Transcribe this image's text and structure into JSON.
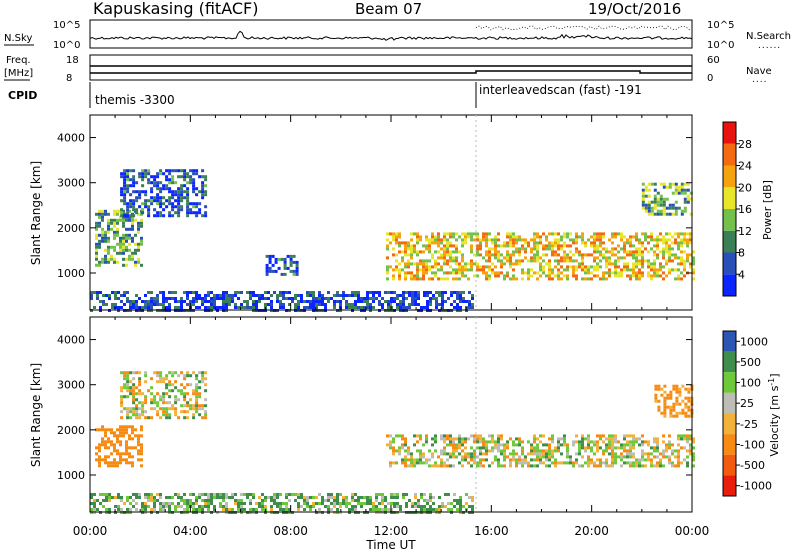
{
  "header": {
    "station": "Kapuskasing (fitACF)",
    "beam": "Beam 07",
    "date": "19/Oct/2016"
  },
  "summary_panels": {
    "nsky": {
      "label": "N.Sky",
      "ticks_left": [
        "10^5",
        "10^0"
      ],
      "ticks_right": [
        "10^5",
        "10^0"
      ],
      "right_label": "N.Search",
      "right_legend": "......"
    },
    "freq": {
      "label_line1": "Freq.",
      "label_line2": "[MHz]",
      "ticks_left": [
        "18",
        "8"
      ],
      "ticks_right": [
        "60",
        "0"
      ],
      "right_label": "Nave",
      "right_legend": "...."
    },
    "cpid": {
      "label": "CPID",
      "segments": [
        {
          "label": "themis -3300",
          "start_hour": 0
        },
        {
          "label": "interleavedscan (fast) -191",
          "start_hour": 15.25
        }
      ]
    }
  },
  "x_axis": {
    "label": "Time UT",
    "ticks": [
      "00:00",
      "04:00",
      "08:00",
      "12:00",
      "16:00",
      "20:00",
      "00:00"
    ],
    "hours": [
      0,
      4,
      8,
      12,
      16,
      20,
      24
    ]
  },
  "chart_data": [
    {
      "type": "heatmap",
      "panel": "power",
      "ylabel": "Slant Range [km]",
      "y_ticks": [
        1000,
        2000,
        3000,
        4000
      ],
      "ylim": [
        180,
        4500
      ],
      "xlim": [
        0,
        24
      ],
      "colorbar": {
        "label": "Power [dB]",
        "tick_labels": [
          "4",
          "8",
          "12",
          "16",
          "20",
          "24",
          "28"
        ],
        "tick_values": [
          4,
          8,
          12,
          16,
          20,
          24,
          28
        ],
        "range": [
          0,
          32
        ],
        "colors": [
          "#0b25ff",
          "#2a4fb8",
          "#3a7f56",
          "#74c04d",
          "#e8e62a",
          "#f6a20e",
          "#f46a10",
          "#e8130e"
        ]
      },
      "echo_regions": [
        {
          "start_hour": 0.2,
          "end_hour": 2.1,
          "range_min": 1200,
          "range_max": 2400,
          "mean_level": 12
        },
        {
          "start_hour": 1.2,
          "end_hour": 4.6,
          "range_min": 2300,
          "range_max": 3300,
          "mean_level": 6
        },
        {
          "start_hour": 0.0,
          "end_hour": 15.3,
          "range_min": 200,
          "range_max": 600,
          "mean_level": 5
        },
        {
          "start_hour": 7.0,
          "end_hour": 8.3,
          "range_min": 950,
          "range_max": 1400,
          "mean_level": 6
        },
        {
          "start_hour": 11.8,
          "end_hour": 24.0,
          "range_min": 900,
          "range_max": 1900,
          "mean_level": 20
        },
        {
          "start_hour": 22.0,
          "end_hour": 24.0,
          "range_min": 2300,
          "range_max": 3000,
          "mean_level": 12
        }
      ]
    },
    {
      "type": "heatmap",
      "panel": "velocity",
      "ylabel": "Slant Range [km]",
      "y_ticks": [
        1000,
        2000,
        3000,
        4000
      ],
      "ylim": [
        180,
        4500
      ],
      "xlim": [
        0,
        24
      ],
      "colorbar": {
        "label": "Velocity [m s^-1]",
        "tick_labels": [
          "1000",
          "500",
          "100",
          "25",
          "-25",
          "-100",
          "-500",
          "-1000"
        ],
        "tick_values": [
          1000,
          500,
          100,
          25,
          -25,
          -100,
          -500,
          -1000
        ],
        "colors": [
          "#2c56b4",
          "#3f8d4a",
          "#6ec93a",
          "#bdbdb6",
          "#f2b13a",
          "#f68a13",
          "#f25a10",
          "#ea1c0c"
        ]
      },
      "echo_regions": [
        {
          "start_hour": 0.2,
          "end_hour": 2.1,
          "range_min": 1200,
          "range_max": 2100,
          "mean_velocity": -300
        },
        {
          "start_hour": 1.2,
          "end_hour": 4.6,
          "range_min": 2300,
          "range_max": 3300,
          "mean_velocity": 0
        },
        {
          "start_hour": 0.0,
          "end_hour": 15.3,
          "range_min": 200,
          "range_max": 600,
          "mean_velocity": 100
        },
        {
          "start_hour": 11.8,
          "end_hour": 24.0,
          "range_min": 1200,
          "range_max": 1900,
          "mean_velocity": 0
        },
        {
          "start_hour": 22.5,
          "end_hour": 24.0,
          "range_min": 2300,
          "range_max": 3000,
          "mean_velocity": -200
        }
      ]
    }
  ]
}
